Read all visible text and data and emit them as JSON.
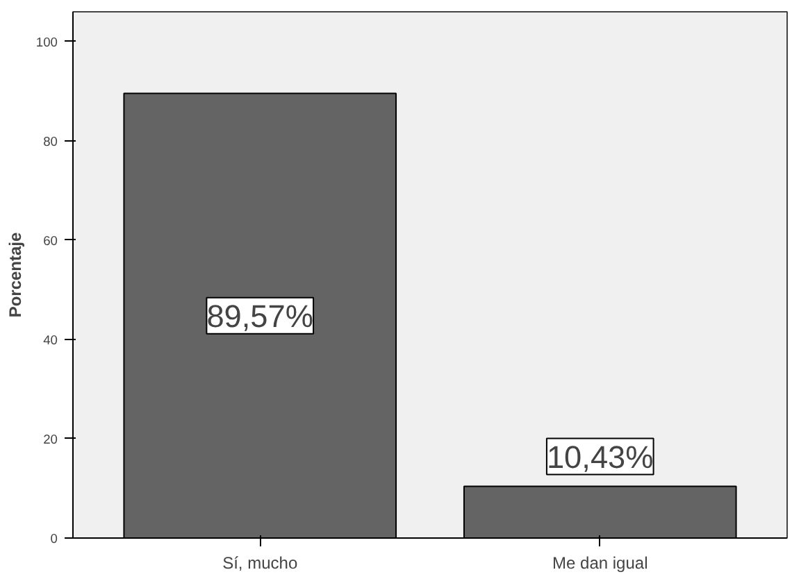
{
  "chart_data": {
    "type": "bar",
    "ylabel": "Porcentaje",
    "categories": [
      "Sí, mucho",
      "Me dan igual"
    ],
    "values": [
      89.57,
      10.43
    ],
    "value_labels": [
      "89,57%",
      "10,43%"
    ],
    "color": "#646464",
    "ylim": [
      0,
      106
    ],
    "yticks": [
      0,
      20,
      40,
      60,
      80,
      100
    ],
    "grid": false
  }
}
